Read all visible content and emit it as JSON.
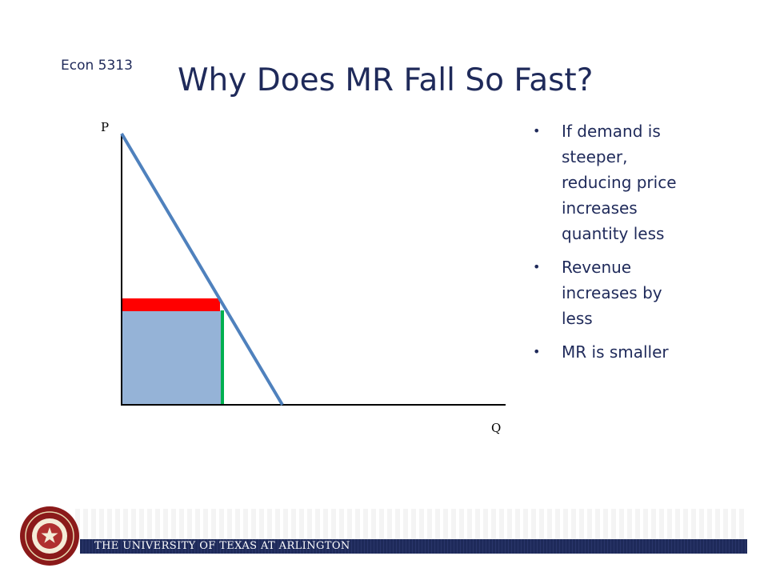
{
  "slide": {
    "course": "Econ 5313",
    "title": "Why Does MR Fall So Fast?",
    "bullets": [
      "If demand is steeper, reducing price increases quantity less",
      "Revenue increases by less",
      "MR is smaller"
    ]
  },
  "diagram": {
    "p_label": "P",
    "q_label": "Q",
    "colors": {
      "axis": "#000000",
      "demand": "#4f81bd",
      "revenue_area": "#95b3d7",
      "price_loss": "#ff0000",
      "quantity_gain": "#00b050"
    }
  },
  "footer": {
    "university": "THE UNIVERSITY OF TEXAS AT ARLINGTON",
    "colors": {
      "bar": "#1e2a5a",
      "seal": "#8b1a1a"
    },
    "seal_icon": "university-seal-icon"
  }
}
